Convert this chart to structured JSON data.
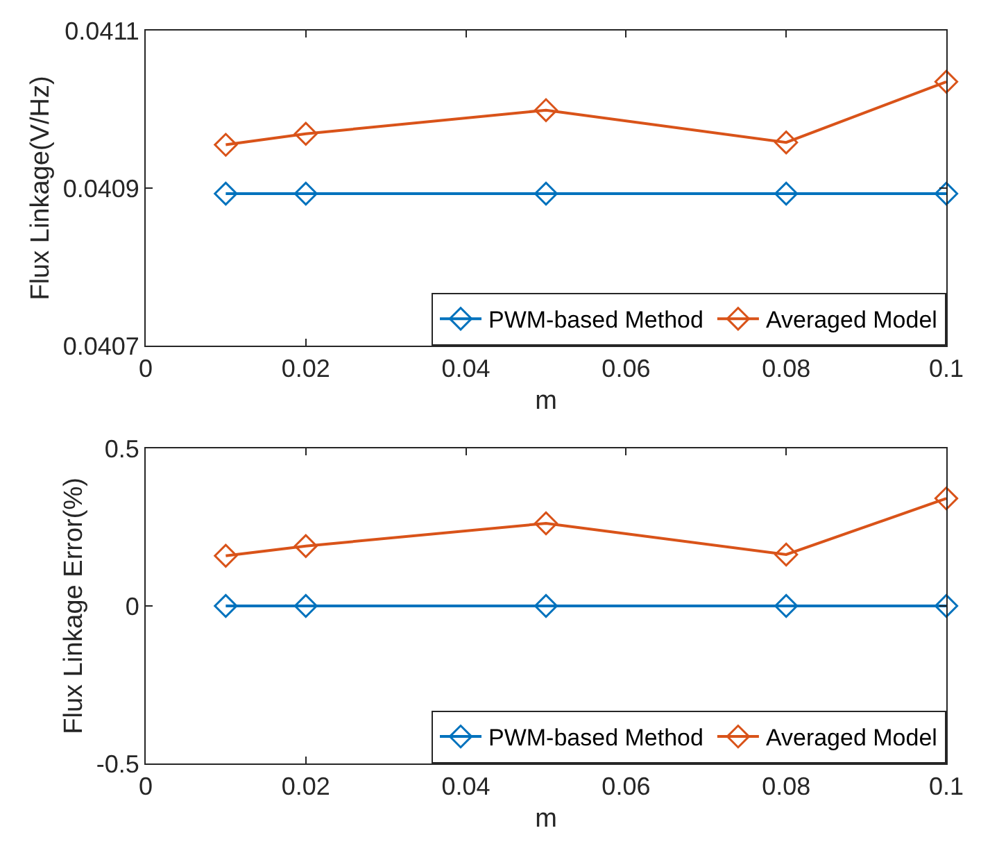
{
  "chart_data": [
    {
      "type": "line",
      "x": [
        0.01,
        0.02,
        0.05,
        0.08,
        0.1
      ],
      "xlabel": "m",
      "ylabel": "Flux Linkage(V/Hz)",
      "xlim": [
        0,
        0.1
      ],
      "xticks": [
        0,
        0.02,
        0.04,
        0.06,
        0.08,
        0.1
      ],
      "ylim": [
        0.0407,
        0.0411
      ],
      "yticks": [
        0.0407,
        0.0409,
        0.0411
      ],
      "legend": "bottom right",
      "marker": "diamond",
      "line_style": "solid",
      "series": [
        {
          "name": "PWM-based Method",
          "color": "#0072bd",
          "values": [
            0.040893,
            0.040893,
            0.040893,
            0.040893,
            0.040893
          ]
        },
        {
          "name": "Averaged Model",
          "color": "#d95319",
          "values": [
            0.040955,
            0.040969,
            0.040999,
            0.040958,
            0.041035
          ]
        }
      ]
    },
    {
      "type": "line",
      "x": [
        0.01,
        0.02,
        0.05,
        0.08,
        0.1
      ],
      "xlabel": "m",
      "ylabel": "Flux Linkage Error(%)",
      "xlim": [
        0,
        0.1
      ],
      "xticks": [
        0,
        0.02,
        0.04,
        0.06,
        0.08,
        0.1
      ],
      "ylim": [
        -0.5,
        0.5
      ],
      "yticks": [
        -0.5,
        0,
        0.5
      ],
      "legend": "bottom right",
      "marker": "diamond",
      "line_style": "solid",
      "series": [
        {
          "name": "PWM-based Method",
          "color": "#0072bd",
          "values": [
            0,
            0,
            0,
            0,
            0
          ]
        },
        {
          "name": "Averaged Model",
          "color": "#d95319",
          "values": [
            0.159,
            0.19,
            0.262,
            0.163,
            0.341
          ]
        }
      ]
    }
  ]
}
